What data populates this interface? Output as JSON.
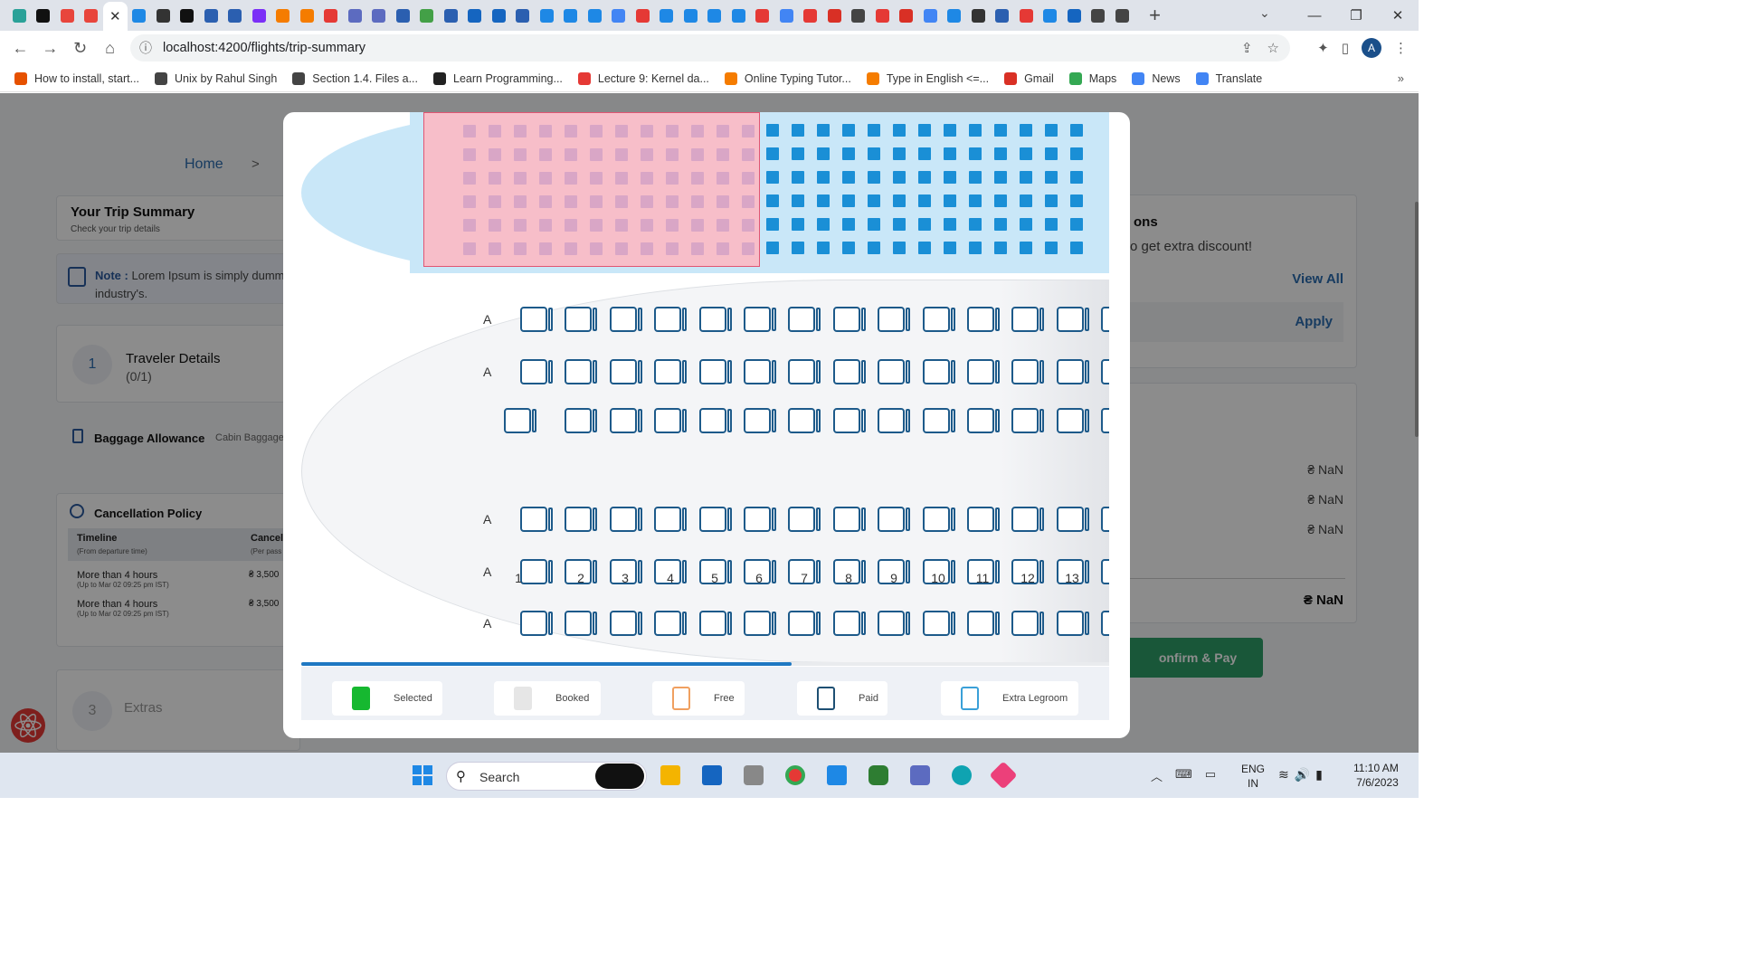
{
  "browser": {
    "tab_colors": [
      "#2aa198",
      "#111",
      "#e8453c",
      "#e8453c",
      "#fff",
      "#1e88e5",
      "#333",
      "#111",
      "#2b5fb0",
      "#2b5fb0",
      "#7b2ff7",
      "#f57c00",
      "#f57c00",
      "#e53935",
      "#5c6bc0",
      "#5c6bc0",
      "#2b5fb0",
      "#43a047",
      "#2b5fb0",
      "#1565c0",
      "#1565c0",
      "#2b5fb0",
      "#1e88e5",
      "#1e88e5",
      "#1e88e5",
      "#4285f4",
      "#e53935",
      "#1e88e5",
      "#1e88e5",
      "#1e88e5",
      "#1e88e5",
      "#e53935",
      "#4285f4",
      "#e53935",
      "#d93025",
      "#444",
      "#e53935",
      "#d93025",
      "#4285f4",
      "#1e88e5",
      "#333",
      "#2b5fb0",
      "#e53935",
      "#1e88e5",
      "#1565c0",
      "#444",
      "#444"
    ],
    "active_tab_index": 4,
    "active_tab_close": "✕",
    "new_tab": "+",
    "url": "localhost:4200/flights/trip-summary",
    "avatar_initial": "A",
    "bookmarks": [
      {
        "label": "How to install, start...",
        "color": "#e65100"
      },
      {
        "label": "Unix by Rahul Singh",
        "color": "#444"
      },
      {
        "label": "Section 1.4.  Files a...",
        "color": "#444"
      },
      {
        "label": "Learn Programming...",
        "color": "#222"
      },
      {
        "label": "Lecture 9: Kernel da...",
        "color": "#e53935"
      },
      {
        "label": "Online Typing Tutor...",
        "color": "#f57c00"
      },
      {
        "label": "Type in English <=...",
        "color": "#f57c00"
      },
      {
        "label": "Gmail",
        "color": "#d93025"
      },
      {
        "label": "Maps",
        "color": "#34a853"
      },
      {
        "label": "News",
        "color": "#4285f4"
      },
      {
        "label": "Translate",
        "color": "#4285f4"
      }
    ],
    "more": "»"
  },
  "page": {
    "breadcrumb_home": "Home",
    "breadcrumb_sep": ">",
    "trip_summary_title": "Your Trip Summary",
    "trip_summary_sub": "Check your trip details",
    "note_label": "Note :",
    "note_text": "Lorem Ipsum is simply dumm industry's.",
    "traveler_step": "1",
    "traveler_title": "Traveler Details",
    "traveler_count": "(0/1)",
    "baggage_title": "Baggage Allowance",
    "baggage_sub": "Cabin Baggage",
    "cancel_title": "Cancellation Policy",
    "cancel_col1": "Timeline",
    "cancel_col1_sub": "(From departure time)",
    "cancel_col2": "Cancell",
    "cancel_col2_sub": "(Per pass",
    "cancel_rows": [
      {
        "title": "More than 4 hours",
        "sub": "(Up to Mar 02 09:25 pm IST)",
        "amount": "₴ 3,500"
      },
      {
        "title": "More than 4 hours",
        "sub": "(Up to Mar 02 09:25 pm IST)",
        "amount": "₴ 3,500"
      }
    ],
    "extras_step": "3",
    "extras_title": "Extras",
    "offers_title": "ons",
    "offers_text": "o get extra discount!",
    "view_all": "View All",
    "apply": "Apply",
    "fares": [
      "₴ NaN",
      "₴ NaN",
      "₴ NaN"
    ],
    "fare_total": "₴ NaN",
    "confirm": "onfirm & Pay"
  },
  "seatmap": {
    "minimap_rows": 6,
    "minimap_cols": 25,
    "rows": [
      {
        "label": "A",
        "seat_count": 14
      },
      {
        "label": "A",
        "seat_count": 14
      },
      {
        "label": "",
        "seat_count": 14
      },
      {
        "label": "A",
        "seat_count": 14
      },
      {
        "label": "A",
        "seat_count": 14
      },
      {
        "label": "A",
        "seat_count": 14
      }
    ],
    "column_numbers": [
      "1",
      "2",
      "3",
      "4",
      "5",
      "6",
      "7",
      "8",
      "9",
      "10",
      "11",
      "12",
      "13"
    ],
    "legend": [
      {
        "label": "Selected",
        "color": "#16b830",
        "fill": true
      },
      {
        "label": "Booked",
        "color": "#e6e6e6",
        "fill": true
      },
      {
        "label": "Free",
        "color": "#f0a060",
        "fill": false
      },
      {
        "label": "Paid",
        "color": "#1d4f73",
        "fill": false
      },
      {
        "label": "Extra Legroom",
        "color": "#3aa0d8",
        "fill": false
      }
    ]
  }
}
